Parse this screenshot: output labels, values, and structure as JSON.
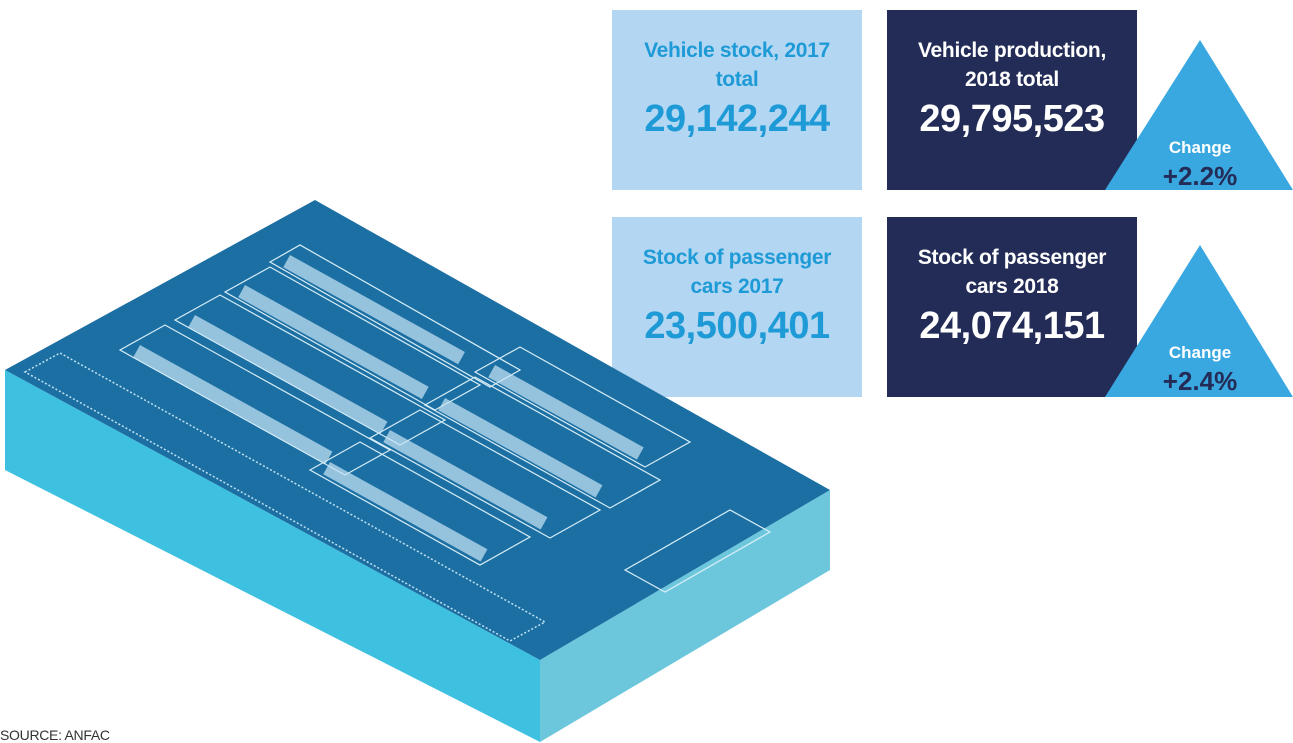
{
  "stats": [
    {
      "label": "Vehicle stock, 2017 total",
      "value": "29,142,244"
    },
    {
      "label": "Vehicle production, 2018 total",
      "value": "29,795,523"
    },
    {
      "label": "Stock of passenger cars 2017",
      "value": "23,500,401"
    },
    {
      "label": "Stock of passenger cars 2018",
      "value": "24,074,151"
    }
  ],
  "changes": [
    {
      "label": "Change",
      "value": "+2.2%"
    },
    {
      "label": "Change",
      "value": "+2.4%"
    }
  ],
  "source": "SOURCE: ANFAC"
}
